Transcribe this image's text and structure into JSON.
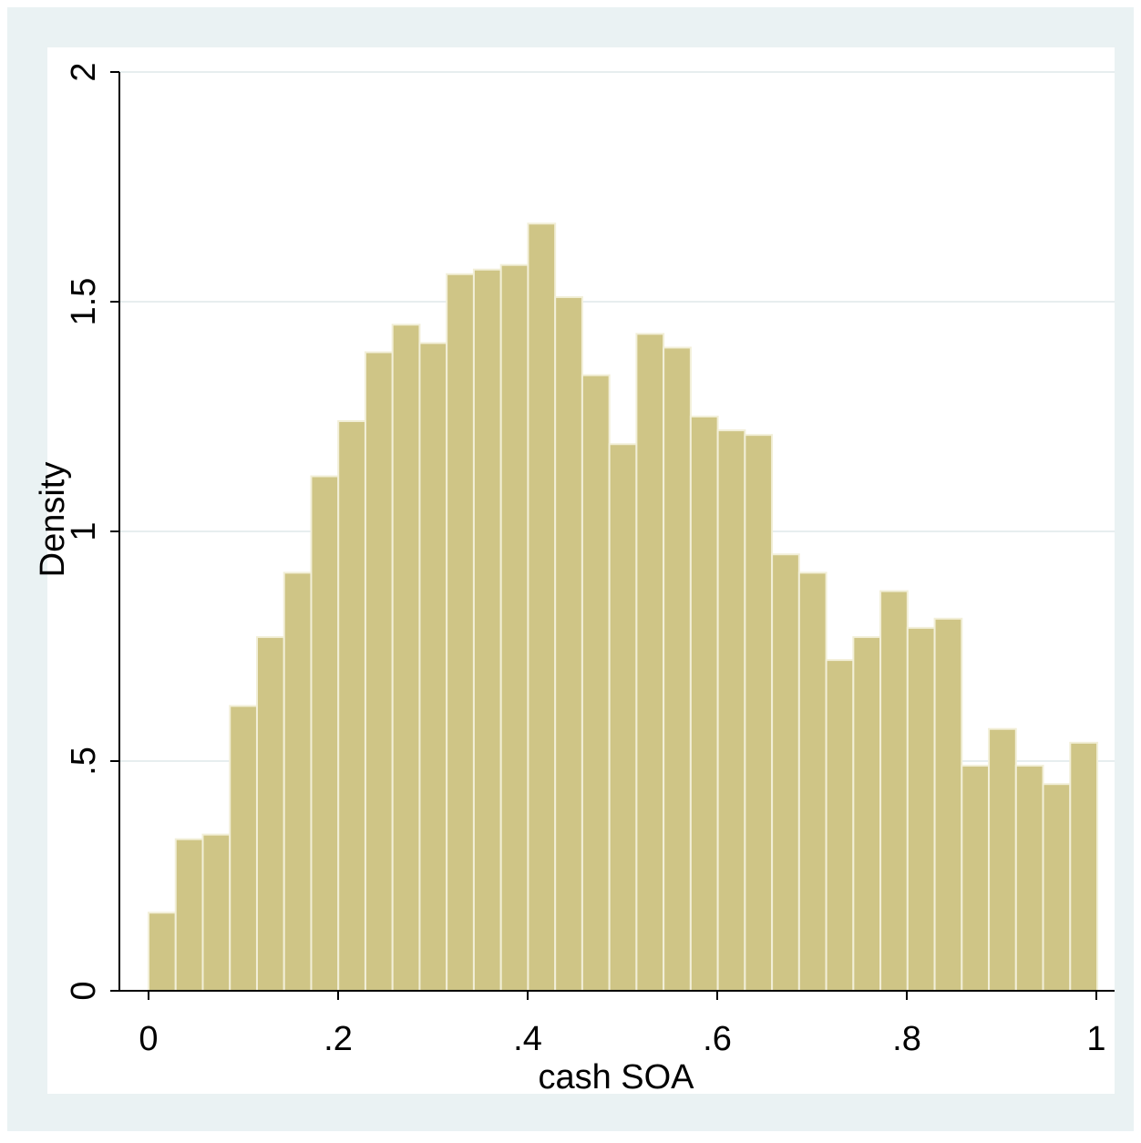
{
  "chart_data": {
    "type": "bar",
    "subtype": "histogram",
    "xlabel": "cash SOA",
    "ylabel": "Density",
    "xlim": [
      0,
      1
    ],
    "ylim": [
      0,
      2
    ],
    "x_ticks": [
      {
        "value": 0,
        "label": "0"
      },
      {
        "value": 0.2,
        "label": ".2"
      },
      {
        "value": 0.4,
        "label": ".4"
      },
      {
        "value": 0.6,
        "label": ".6"
      },
      {
        "value": 0.8,
        "label": ".8"
      },
      {
        "value": 1,
        "label": "1"
      }
    ],
    "y_ticks": [
      {
        "value": 0,
        "label": "0"
      },
      {
        "value": 0.5,
        "label": ".5"
      },
      {
        "value": 1,
        "label": "1"
      },
      {
        "value": 1.5,
        "label": "1.5"
      },
      {
        "value": 2,
        "label": "2"
      }
    ],
    "grid": true,
    "bin_start": 0.0,
    "bin_width": 0.0286,
    "values": [
      0.17,
      0.33,
      0.34,
      0.62,
      0.77,
      0.91,
      1.12,
      1.24,
      1.39,
      1.45,
      1.41,
      1.56,
      1.57,
      1.58,
      1.67,
      1.51,
      1.34,
      1.19,
      1.43,
      1.4,
      1.25,
      1.22,
      1.21,
      0.95,
      0.91,
      0.72,
      0.77,
      0.87,
      0.79,
      0.81,
      0.49,
      0.57,
      0.49,
      0.45,
      0.54
    ],
    "colors": {
      "background": "#ffffff",
      "outer_frame": "#eaf2f3",
      "plot_area": "#ffffff",
      "bar_fill": "#cfc586",
      "bar_edge": "#f2efd8",
      "grid": "#e7eeef",
      "axis": "#000000"
    }
  }
}
